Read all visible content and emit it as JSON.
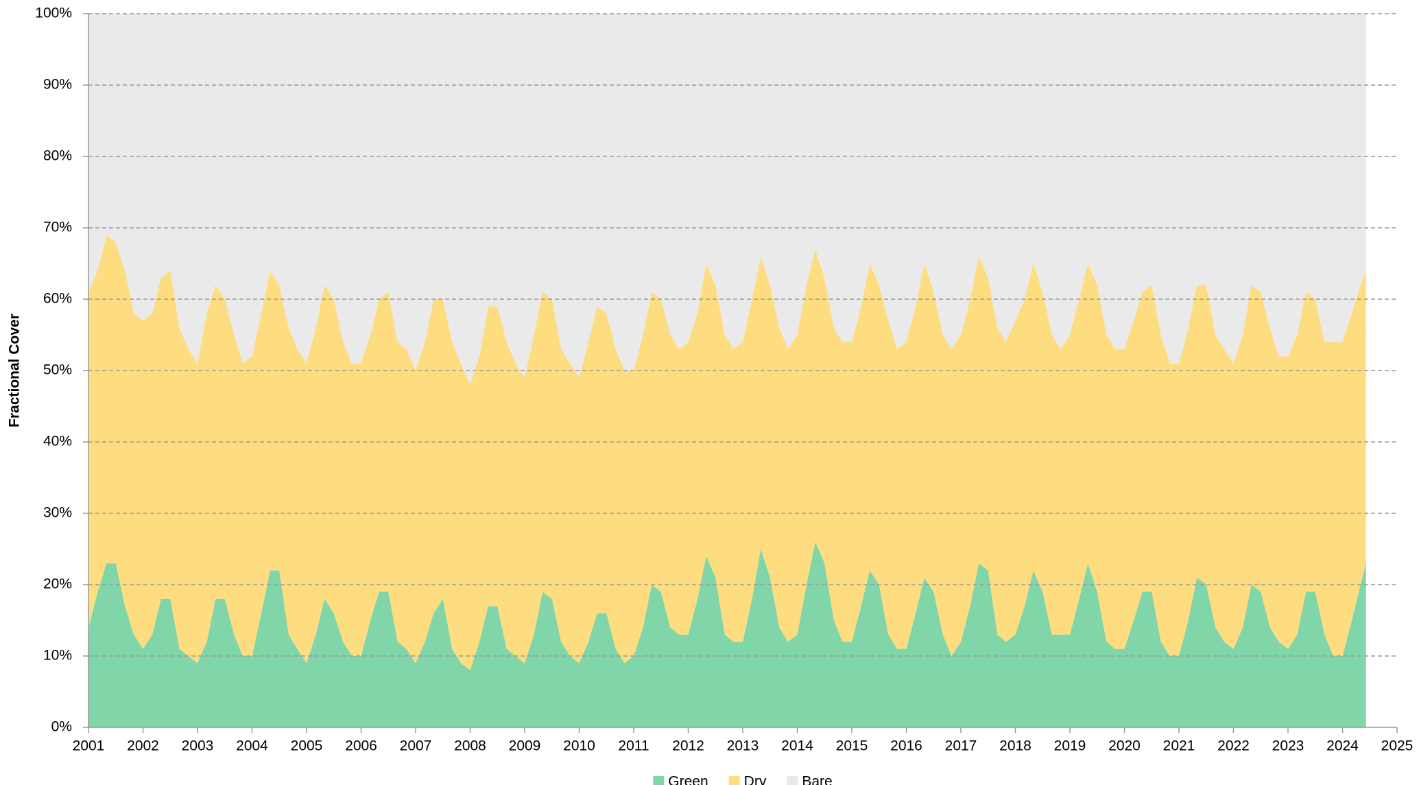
{
  "chart_data": {
    "type": "stacked_area",
    "y_label": "Fractional Cover",
    "x": [
      2001,
      2001.17,
      2001.33,
      2001.5,
      2001.67,
      2001.83,
      2002,
      2002.17,
      2002.33,
      2002.5,
      2002.67,
      2002.83,
      2003,
      2003.17,
      2003.33,
      2003.5,
      2003.67,
      2003.83,
      2004,
      2004.17,
      2004.33,
      2004.5,
      2004.67,
      2004.83,
      2005,
      2005.17,
      2005.33,
      2005.5,
      2005.67,
      2005.83,
      2006,
      2006.17,
      2006.33,
      2006.5,
      2006.67,
      2006.83,
      2007,
      2007.17,
      2007.33,
      2007.5,
      2007.67,
      2007.83,
      2008,
      2008.17,
      2008.33,
      2008.5,
      2008.67,
      2008.83,
      2009,
      2009.17,
      2009.33,
      2009.5,
      2009.67,
      2009.83,
      2010,
      2010.17,
      2010.33,
      2010.5,
      2010.67,
      2010.83,
      2011,
      2011.17,
      2011.33,
      2011.5,
      2011.67,
      2011.83,
      2012,
      2012.17,
      2012.33,
      2012.5,
      2012.67,
      2012.83,
      2013,
      2013.17,
      2013.33,
      2013.5,
      2013.67,
      2013.83,
      2014,
      2014.17,
      2014.33,
      2014.5,
      2014.67,
      2014.83,
      2015,
      2015.17,
      2015.33,
      2015.5,
      2015.67,
      2015.83,
      2016,
      2016.17,
      2016.33,
      2016.5,
      2016.67,
      2016.83,
      2017,
      2017.17,
      2017.33,
      2017.5,
      2017.67,
      2017.83,
      2018,
      2018.17,
      2018.33,
      2018.5,
      2018.67,
      2018.83,
      2019,
      2019.17,
      2019.33,
      2019.5,
      2019.67,
      2019.83,
      2020,
      2020.17,
      2020.33,
      2020.5,
      2020.67,
      2020.83,
      2021,
      2021.17,
      2021.33,
      2021.5,
      2021.67,
      2021.83,
      2022,
      2022.17,
      2022.33,
      2022.5,
      2022.67,
      2022.83,
      2023,
      2023.17,
      2023.33,
      2023.5,
      2023.67,
      2023.83,
      2024,
      2024.17,
      2024.33,
      2024.43
    ],
    "series": [
      {
        "name": "Green",
        "color": "#80d6a8",
        "values": [
          14,
          19,
          23,
          23,
          17,
          13,
          11,
          13,
          18,
          18,
          11,
          10,
          9,
          12,
          18,
          18,
          13,
          10,
          10,
          16,
          22,
          22,
          13,
          11,
          9,
          13,
          18,
          16,
          12,
          10,
          10,
          15,
          19,
          19,
          12,
          11,
          9,
          12,
          16,
          18,
          11,
          9,
          8,
          12,
          17,
          17,
          11,
          10,
          9,
          13,
          19,
          18,
          12,
          10,
          9,
          12,
          16,
          16,
          11,
          9,
          10,
          14,
          20,
          19,
          14,
          13,
          13,
          18,
          24,
          21,
          13,
          12,
          12,
          18,
          25,
          21,
          14,
          12,
          13,
          20,
          26,
          23,
          15,
          12,
          12,
          17,
          22,
          20,
          13,
          11,
          11,
          16,
          21,
          19,
          13,
          10,
          12,
          17,
          23,
          22,
          13,
          12,
          13,
          17,
          22,
          19,
          13,
          13,
          13,
          18,
          23,
          19,
          12,
          11,
          11,
          15,
          19,
          19,
          12,
          10,
          10,
          15,
          21,
          20,
          14,
          12,
          11,
          14,
          20,
          19,
          14,
          12,
          11,
          13,
          19,
          19,
          13,
          10,
          10,
          15,
          20,
          23
        ]
      },
      {
        "name": "Dry",
        "color": "#fddd80",
        "values": [
          47,
          45,
          46,
          45,
          47,
          45,
          46,
          45,
          45,
          46,
          45,
          43,
          42,
          46,
          44,
          42,
          42,
          41,
          42,
          42,
          42,
          40,
          43,
          42,
          42,
          43,
          44,
          44,
          42,
          41,
          41,
          40,
          41,
          42,
          42,
          42,
          41,
          42,
          44,
          42,
          43,
          42,
          40,
          40,
          42,
          42,
          43,
          41,
          40,
          42,
          42,
          42,
          41,
          41,
          40,
          42,
          43,
          42,
          42,
          41,
          40,
          41,
          41,
          41,
          41,
          40,
          41,
          40,
          41,
          41,
          42,
          41,
          42,
          42,
          41,
          41,
          42,
          41,
          42,
          42,
          41,
          40,
          41,
          42,
          42,
          42,
          43,
          42,
          44,
          42,
          43,
          43,
          44,
          42,
          42,
          43,
          43,
          43,
          43,
          41,
          43,
          42,
          44,
          43,
          43,
          42,
          42,
          40,
          42,
          42,
          42,
          43,
          43,
          42,
          42,
          42,
          42,
          43,
          43,
          41,
          41,
          41,
          41,
          42,
          41,
          41,
          40,
          41,
          42,
          42,
          42,
          40,
          41,
          42,
          42,
          41,
          41,
          44,
          44,
          43,
          42,
          41
        ]
      },
      {
        "name": "Bare",
        "color": "#eaeaea",
        "values": [
          39,
          36,
          31,
          32,
          36,
          42,
          43,
          42,
          37,
          36,
          44,
          47,
          49,
          42,
          38,
          40,
          45,
          49,
          48,
          42,
          36,
          38,
          44,
          47,
          49,
          44,
          38,
          40,
          46,
          49,
          49,
          45,
          40,
          39,
          46,
          47,
          50,
          46,
          40,
          40,
          46,
          49,
          52,
          48,
          41,
          41,
          46,
          49,
          51,
          45,
          39,
          40,
          47,
          49,
          51,
          46,
          41,
          42,
          47,
          50,
          50,
          45,
          39,
          40,
          45,
          47,
          46,
          42,
          35,
          38,
          45,
          47,
          46,
          40,
          34,
          38,
          44,
          47,
          45,
          38,
          33,
          37,
          44,
          46,
          46,
          41,
          35,
          38,
          43,
          47,
          46,
          41,
          35,
          39,
          45,
          47,
          45,
          40,
          34,
          37,
          44,
          46,
          43,
          40,
          35,
          39,
          45,
          47,
          45,
          40,
          35,
          38,
          45,
          47,
          47,
          43,
          39,
          38,
          45,
          49,
          49,
          44,
          38,
          38,
          45,
          47,
          49,
          45,
          38,
          39,
          44,
          48,
          48,
          45,
          39,
          40,
          46,
          46,
          46,
          42,
          38,
          36
        ]
      }
    ],
    "xlim": [
      2001,
      2025
    ],
    "xticks": [
      2001,
      2002,
      2003,
      2004,
      2005,
      2006,
      2007,
      2008,
      2009,
      2010,
      2011,
      2012,
      2013,
      2014,
      2015,
      2016,
      2017,
      2018,
      2019,
      2020,
      2021,
      2022,
      2023,
      2024,
      2025
    ],
    "ylim": [
      0,
      100
    ],
    "yticks": [
      {
        "value": 0,
        "label": "0%"
      },
      {
        "value": 10,
        "label": "10%"
      },
      {
        "value": 20,
        "label": "20%"
      },
      {
        "value": 30,
        "label": "30%"
      },
      {
        "value": 40,
        "label": "40%"
      },
      {
        "value": 50,
        "label": "50%"
      },
      {
        "value": 60,
        "label": "60%"
      },
      {
        "value": 70,
        "label": "70%"
      },
      {
        "value": 80,
        "label": "80%"
      },
      {
        "value": 90,
        "label": "90%"
      },
      {
        "value": 100,
        "label": "100%"
      }
    ],
    "grid": true,
    "legend": "bottom"
  }
}
